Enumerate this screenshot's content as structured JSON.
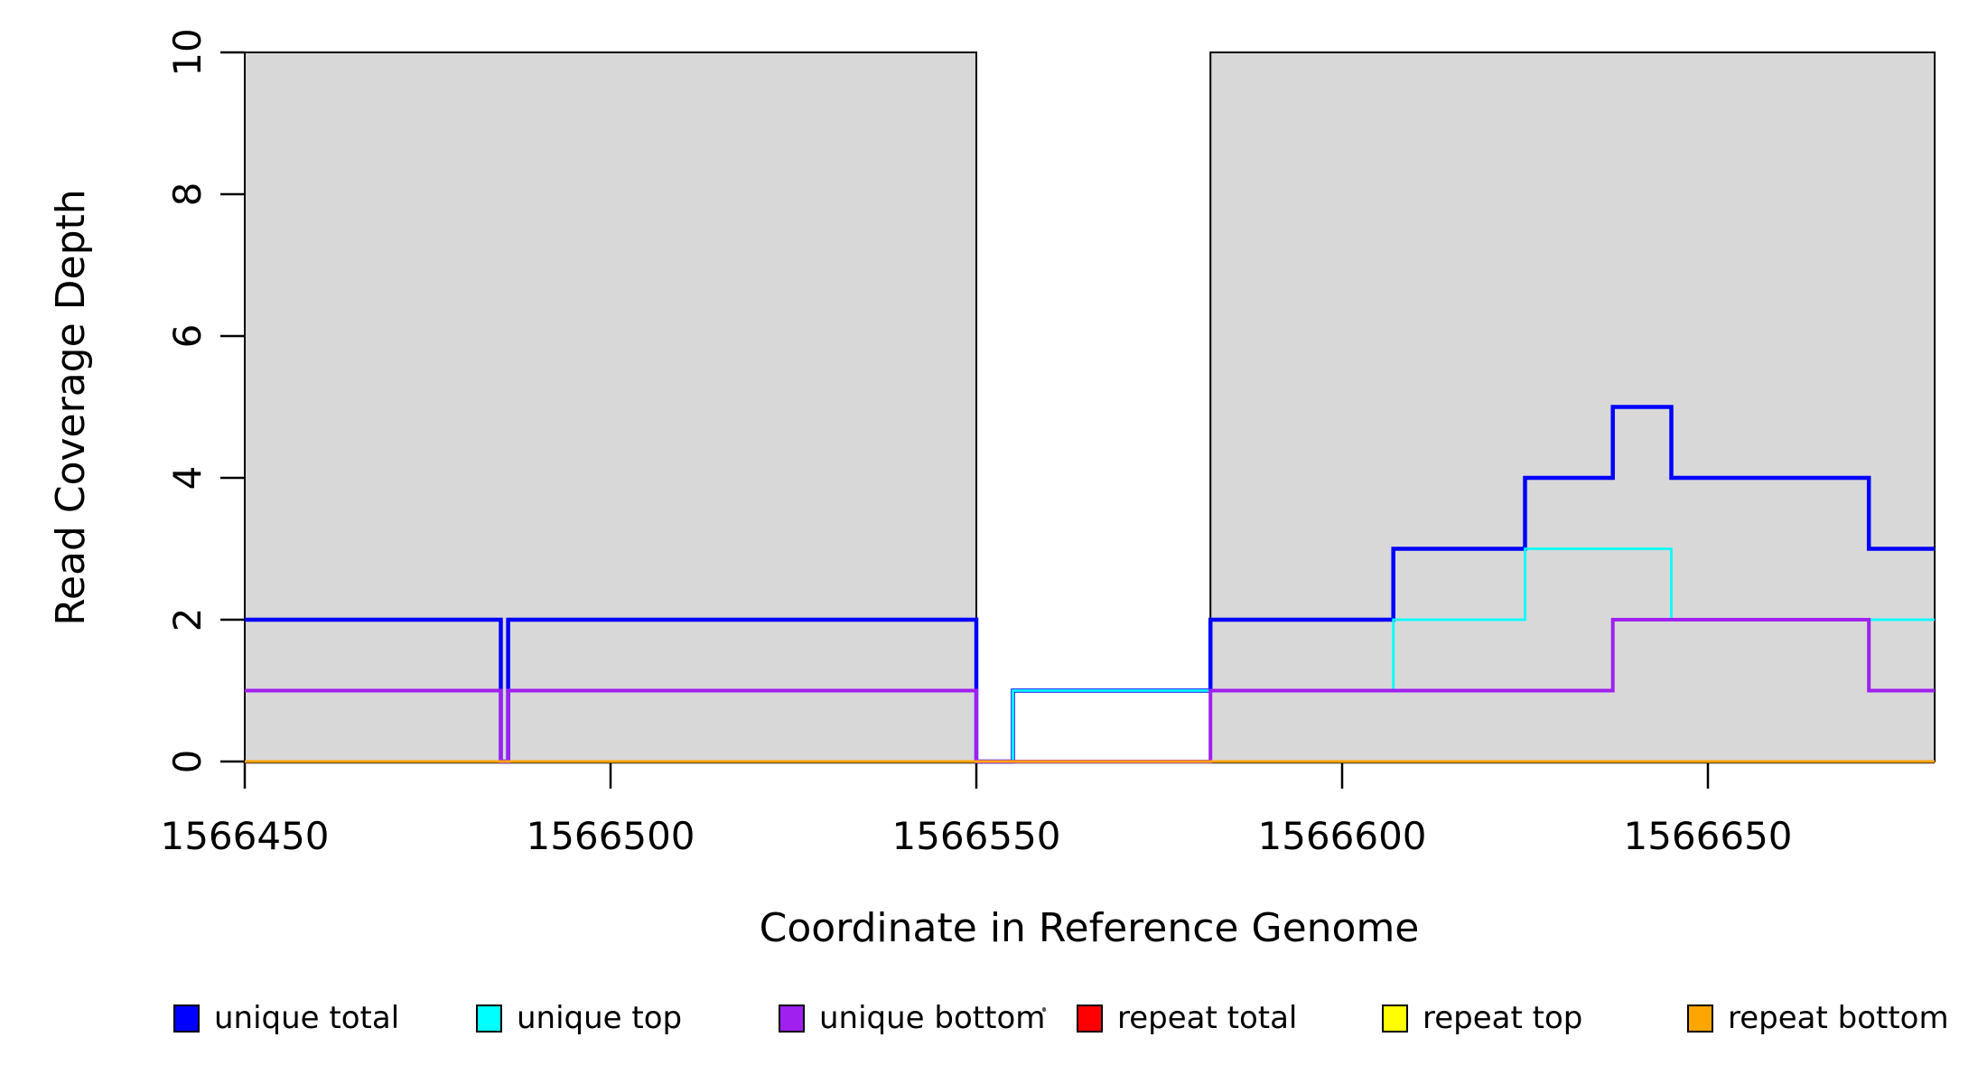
{
  "chart_data": {
    "type": "line",
    "subtype": "step-coverage",
    "title": "",
    "xlabel": "Coordinate in Reference Genome",
    "ylabel": "Read Coverage Depth",
    "xlim": [
      1566450,
      1566681
    ],
    "ylim": [
      0,
      10
    ],
    "x_ticks": [
      1566450,
      1566500,
      1566550,
      1566600,
      1566650
    ],
    "y_ticks": [
      0,
      2,
      4,
      6,
      8,
      10
    ],
    "grid": false,
    "legend_position": "bottom-horizontal",
    "shade_color": "#D8D8D8",
    "shade_border_color": "#000000",
    "axis_color": "#000000",
    "shaded_regions": [
      [
        1566450,
        1566550
      ],
      [
        1566582,
        1566681
      ]
    ],
    "series": [
      {
        "name": "unique total",
        "color": "#0000FF",
        "steps": [
          [
            1566450,
            2
          ],
          [
            1566485,
            0
          ],
          [
            1566486,
            2
          ],
          [
            1566550,
            0
          ],
          [
            1566555,
            1
          ],
          [
            1566582,
            2
          ],
          [
            1566607,
            3
          ],
          [
            1566625,
            4
          ],
          [
            1566637,
            5
          ],
          [
            1566645,
            4
          ],
          [
            1566672,
            3
          ]
        ]
      },
      {
        "name": "unique top",
        "color": "#00FFFF",
        "steps": [
          [
            1566450,
            1
          ],
          [
            1566485,
            0
          ],
          [
            1566486,
            1
          ],
          [
            1566550,
            0
          ],
          [
            1566555,
            1
          ],
          [
            1566607,
            2
          ],
          [
            1566625,
            3
          ],
          [
            1566645,
            2
          ]
        ]
      },
      {
        "name": "unique bottom",
        "color": "#A020F0",
        "steps": [
          [
            1566450,
            1
          ],
          [
            1566485,
            0
          ],
          [
            1566486,
            1
          ],
          [
            1566550,
            0
          ],
          [
            1566582,
            1
          ],
          [
            1566637,
            2
          ],
          [
            1566672,
            1
          ]
        ]
      },
      {
        "name": "repeat total",
        "color": "#FF0000",
        "steps": [
          [
            1566450,
            0
          ]
        ]
      },
      {
        "name": "repeat top",
        "color": "#FFFF00",
        "steps": [
          [
            1566450,
            0
          ]
        ]
      },
      {
        "name": "repeat bottom",
        "color": "#FFA500",
        "steps": [
          [
            1566450,
            0
          ]
        ]
      }
    ]
  }
}
